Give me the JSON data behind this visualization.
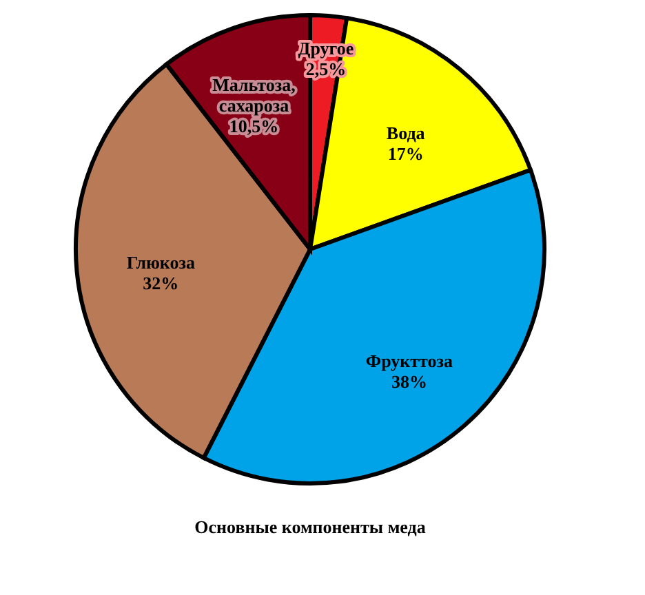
{
  "chart_data": {
    "type": "pie",
    "title": "Основные компоненты меда",
    "categories": [
      "Другое",
      "Вода",
      "Фрукттоза",
      "Глюкоза",
      "Мальтоза, сахароза"
    ],
    "values": [
      2.5,
      17,
      38,
      32,
      10.5
    ],
    "colors": [
      "#ed1c24",
      "#ffff00",
      "#00a2e8",
      "#b97a57",
      "#880015"
    ],
    "value_labels": [
      "2,5%",
      "17%",
      "38%",
      "32%",
      "10,5%"
    ],
    "legend": false
  }
}
